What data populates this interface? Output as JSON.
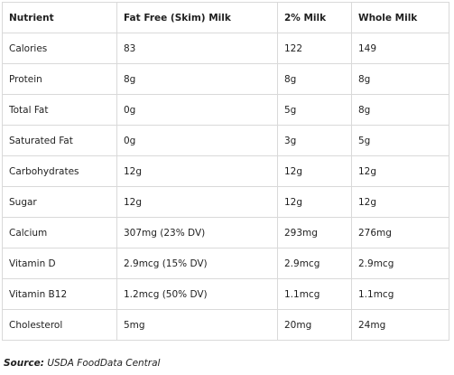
{
  "table": {
    "headers": [
      "Nutrient",
      "Fat Free (Skim) Milk",
      "2% Milk",
      "Whole Milk"
    ],
    "rows": [
      [
        "Calories",
        "83",
        "122",
        "149"
      ],
      [
        "Protein",
        "8g",
        "8g",
        "8g"
      ],
      [
        "Total Fat",
        "0g",
        "5g",
        "8g"
      ],
      [
        "Saturated Fat",
        "0g",
        "3g",
        "5g"
      ],
      [
        "Carbohydrates",
        "12g",
        "12g",
        "12g"
      ],
      [
        "Sugar",
        "12g",
        "12g",
        "12g"
      ],
      [
        "Calcium",
        "307mg (23% DV)",
        "293mg",
        "276mg"
      ],
      [
        "Vitamin D",
        "2.9mcg (15% DV)",
        "2.9mcg",
        "2.9mcg"
      ],
      [
        "Vitamin B12",
        "1.2mcg (50% DV)",
        "1.1mcg",
        "1.1mcg"
      ],
      [
        "Cholesterol",
        "5mg",
        "20mg",
        "24mg"
      ]
    ]
  },
  "source": {
    "label": "Source:",
    "text": " USDA FoodData Central"
  }
}
